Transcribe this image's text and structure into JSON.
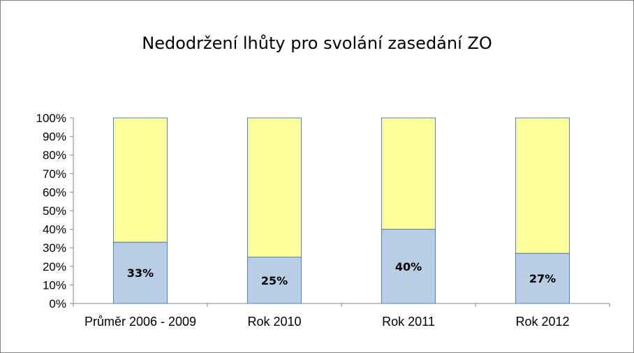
{
  "chart_data": {
    "type": "bar",
    "stacked": true,
    "percent_stacked": true,
    "title": "Nedodržení lhůty pro svolání zasedání ZO",
    "categories": [
      "Průměr 2006 - 2009",
      "Rok 2010",
      "Rok 2011",
      "Rok 2012"
    ],
    "series": [
      {
        "values": [
          33,
          25,
          40,
          27
        ],
        "color": "#b9cde5",
        "data_labels": [
          "33%",
          "25%",
          "40%",
          "27%"
        ]
      },
      {
        "values": [
          67,
          75,
          60,
          73
        ],
        "color": "#ffff99"
      }
    ],
    "ylim": [
      0,
      100
    ],
    "yticks": [
      "0%",
      "10%",
      "20%",
      "30%",
      "40%",
      "50%",
      "60%",
      "70%",
      "80%",
      "90%",
      "100%"
    ],
    "xlabel": "",
    "ylabel": "",
    "grid": false,
    "legend": "none"
  }
}
